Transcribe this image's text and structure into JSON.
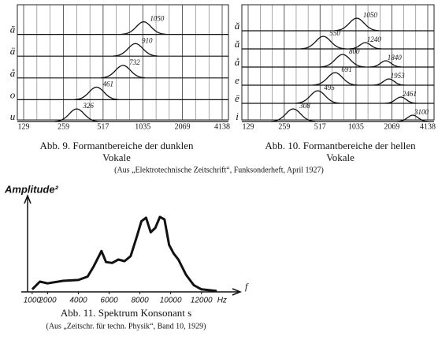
{
  "chart_data": [
    {
      "type": "formant",
      "caption": "Abb. 9. Formantbereiche der dunklen Vokale",
      "x_scale": "log",
      "xlim": [
        129,
        4138
      ],
      "xticks": [
        129,
        259,
        517,
        1035,
        2069,
        4138
      ],
      "rows": [
        {
          "label": "ă",
          "peaks": [
            1050
          ]
        },
        {
          "label": "ä",
          "peaks": [
            910
          ]
        },
        {
          "label": "å",
          "peaks": [
            732
          ]
        },
        {
          "label": "o",
          "peaks": [
            461
          ]
        },
        {
          "label": "u",
          "peaks": [
            326
          ]
        }
      ]
    },
    {
      "type": "formant",
      "caption": "Abb. 10. Formantbereiche der hellen Vokale",
      "x_scale": "log",
      "xlim": [
        129,
        4138
      ],
      "xticks": [
        129,
        259,
        517,
        1035,
        2069,
        4138
      ],
      "rows": [
        {
          "label": "ă",
          "peaks": [
            1050
          ]
        },
        {
          "label": "ǎ",
          "peaks": [
            550,
            1240
          ]
        },
        {
          "label": "å",
          "peaks": [
            800,
            1840
          ]
        },
        {
          "label": "e",
          "peaks": [
            691,
            1953
          ]
        },
        {
          "label": "ē",
          "peaks": [
            495,
            2461
          ]
        },
        {
          "label": "i",
          "peaks": [
            308,
            3100
          ]
        }
      ]
    },
    {
      "type": "line",
      "caption": "Abb. 11. Spektrum Konsonant s",
      "source": "(Aus „Zeitschr. für techn. Physik“, Band 10, 1929)",
      "y_label": "Amplitude²",
      "x_label": "f",
      "x_unit": "Hz",
      "xlim": [
        700,
        13500
      ],
      "ylim": [
        0,
        10
      ],
      "xticks": [
        1000,
        2000,
        4000,
        6000,
        8000,
        10000,
        12000
      ],
      "x": [
        1000,
        1500,
        2000,
        3000,
        4000,
        4600,
        5000,
        5500,
        5800,
        6200,
        6600,
        7000,
        7400,
        7800,
        8100,
        8400,
        8700,
        9000,
        9300,
        9600,
        9900,
        10200,
        10500,
        11000,
        11500,
        12000,
        13000
      ],
      "values": [
        0.3,
        1.2,
        1.0,
        1.3,
        1.4,
        1.8,
        3.0,
        4.8,
        3.5,
        3.4,
        3.8,
        3.6,
        4.2,
        6.5,
        8.3,
        8.7,
        7.0,
        7.5,
        8.8,
        8.5,
        5.5,
        4.5,
        3.8,
        2.0,
        0.8,
        0.3,
        0.1
      ]
    }
  ],
  "source": "(Aus „Elektrotechnische Zeitschrift“, Funksonderheft, April 1927)"
}
